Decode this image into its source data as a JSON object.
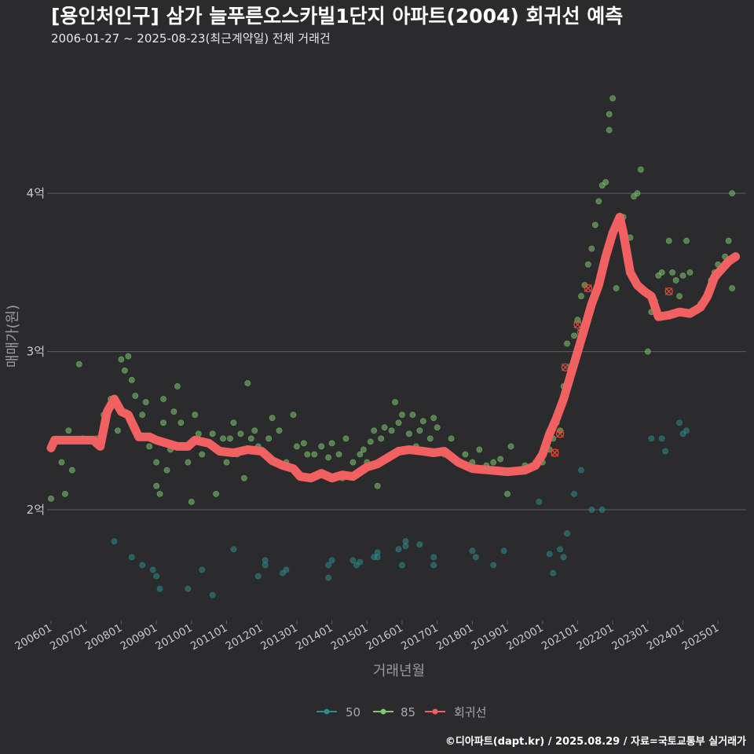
{
  "chart_data": {
    "type": "scatter",
    "title": "[용인처인구] 삼가 늘푸른오스카빌1단지 아파트(2004) 회귀선 예측",
    "subtitle": "2006-01-27 ~ 2025-08-23(최근계약일) 전체 거래건",
    "xlabel": "거래년월",
    "ylabel": "매매가(원)",
    "caption": "©디아파트(dapt.kr) / 2025.08.29 / 자료=국토교통부 실거래가",
    "xlim": [
      2006.0,
      2025.8
    ],
    "ylim": [
      1.3,
      4.8
    ],
    "y_ticks": [
      {
        "v": 2,
        "label": "2억"
      },
      {
        "v": 3,
        "label": "3억"
      },
      {
        "v": 4,
        "label": "4억"
      }
    ],
    "x_ticks": [
      "200601",
      "200701",
      "200801",
      "200901",
      "201001",
      "201101",
      "201201",
      "201301",
      "201401",
      "201501",
      "201601",
      "201701",
      "201801",
      "201901",
      "202001",
      "202101",
      "202201",
      "202301",
      "202401",
      "202501"
    ],
    "legend": [
      {
        "name": "50",
        "color": "#2e8b8b"
      },
      {
        "name": "85",
        "color": "#7ec86e"
      },
      {
        "name": "회귀선",
        "color": "#f26161"
      }
    ],
    "series": [
      {
        "name": "50",
        "color": "#2e8b8b",
        "points": [
          [
            2007.8,
            1.8
          ],
          [
            2008.3,
            1.7
          ],
          [
            2008.6,
            1.65
          ],
          [
            2008.9,
            1.62
          ],
          [
            2009.0,
            1.58
          ],
          [
            2009.1,
            1.5
          ],
          [
            2009.9,
            1.5
          ],
          [
            2010.3,
            1.62
          ],
          [
            2010.6,
            1.46
          ],
          [
            2011.2,
            1.75
          ],
          [
            2011.9,
            1.58
          ],
          [
            2012.1,
            1.65
          ],
          [
            2012.1,
            1.68
          ],
          [
            2012.6,
            1.6
          ],
          [
            2012.7,
            1.62
          ],
          [
            2013.9,
            1.57
          ],
          [
            2013.9,
            1.65
          ],
          [
            2014.0,
            1.68
          ],
          [
            2014.6,
            1.68
          ],
          [
            2014.7,
            1.65
          ],
          [
            2014.8,
            1.67
          ],
          [
            2015.2,
            1.7
          ],
          [
            2015.3,
            1.73
          ],
          [
            2015.3,
            1.7
          ],
          [
            2015.9,
            1.75
          ],
          [
            2016.0,
            1.65
          ],
          [
            2016.1,
            1.8
          ],
          [
            2016.1,
            1.77
          ],
          [
            2016.5,
            1.78
          ],
          [
            2016.9,
            1.65
          ],
          [
            2016.9,
            1.7
          ],
          [
            2018.0,
            1.74
          ],
          [
            2018.1,
            1.7
          ],
          [
            2018.6,
            1.65
          ],
          [
            2018.9,
            1.74
          ],
          [
            2019.9,
            2.05
          ],
          [
            2020.2,
            1.72
          ],
          [
            2020.3,
            1.6
          ],
          [
            2020.5,
            1.75
          ],
          [
            2020.6,
            1.7
          ],
          [
            2020.7,
            1.85
          ],
          [
            2020.9,
            2.1
          ],
          [
            2021.1,
            2.25
          ],
          [
            2021.4,
            2.0
          ],
          [
            2021.7,
            2.0
          ],
          [
            2023.1,
            2.45
          ],
          [
            2023.4,
            2.45
          ],
          [
            2023.5,
            2.37
          ],
          [
            2023.9,
            2.55
          ],
          [
            2024.0,
            2.48
          ],
          [
            2024.1,
            2.5
          ]
        ]
      },
      {
        "name": "85",
        "color": "#7ec86e",
        "points": [
          [
            2006.0,
            2.07
          ],
          [
            2006.3,
            2.3
          ],
          [
            2006.4,
            2.1
          ],
          [
            2006.5,
            2.5
          ],
          [
            2006.6,
            2.25
          ],
          [
            2006.8,
            2.92
          ],
          [
            2006.9,
            2.45
          ],
          [
            2007.3,
            2.45
          ],
          [
            2007.5,
            2.6
          ],
          [
            2007.7,
            2.7
          ],
          [
            2007.9,
            2.5
          ],
          [
            2008.0,
            2.95
          ],
          [
            2008.1,
            2.88
          ],
          [
            2008.2,
            2.97
          ],
          [
            2008.3,
            2.82
          ],
          [
            2008.4,
            2.72
          ],
          [
            2008.6,
            2.6
          ],
          [
            2008.7,
            2.68
          ],
          [
            2008.8,
            2.4
          ],
          [
            2008.9,
            2.45
          ],
          [
            2009.0,
            2.3
          ],
          [
            2009.0,
            2.15
          ],
          [
            2009.1,
            2.1
          ],
          [
            2009.2,
            2.55
          ],
          [
            2009.2,
            2.7
          ],
          [
            2009.3,
            2.25
          ],
          [
            2009.4,
            2.38
          ],
          [
            2009.5,
            2.62
          ],
          [
            2009.6,
            2.78
          ],
          [
            2009.7,
            2.55
          ],
          [
            2009.8,
            2.4
          ],
          [
            2009.9,
            2.3
          ],
          [
            2010.0,
            2.05
          ],
          [
            2010.1,
            2.6
          ],
          [
            2010.2,
            2.48
          ],
          [
            2010.3,
            2.35
          ],
          [
            2010.6,
            2.48
          ],
          [
            2010.7,
            2.1
          ],
          [
            2010.8,
            2.38
          ],
          [
            2010.9,
            2.45
          ],
          [
            2011.0,
            2.3
          ],
          [
            2011.1,
            2.45
          ],
          [
            2011.2,
            2.55
          ],
          [
            2011.3,
            2.35
          ],
          [
            2011.4,
            2.48
          ],
          [
            2011.5,
            2.2
          ],
          [
            2011.6,
            2.8
          ],
          [
            2011.7,
            2.45
          ],
          [
            2011.8,
            2.5
          ],
          [
            2011.9,
            2.4
          ],
          [
            2012.1,
            2.35
          ],
          [
            2012.2,
            2.45
          ],
          [
            2012.3,
            2.58
          ],
          [
            2012.5,
            2.5
          ],
          [
            2012.7,
            2.3
          ],
          [
            2012.9,
            2.6
          ],
          [
            2013.0,
            2.4
          ],
          [
            2013.2,
            2.42
          ],
          [
            2013.3,
            2.35
          ],
          [
            2013.5,
            2.35
          ],
          [
            2013.7,
            2.4
          ],
          [
            2013.9,
            2.33
          ],
          [
            2014.0,
            2.42
          ],
          [
            2014.2,
            2.35
          ],
          [
            2014.3,
            2.2
          ],
          [
            2014.4,
            2.45
          ],
          [
            2014.6,
            2.3
          ],
          [
            2014.8,
            2.35
          ],
          [
            2014.9,
            2.38
          ],
          [
            2015.0,
            2.3
          ],
          [
            2015.1,
            2.43
          ],
          [
            2015.2,
            2.5
          ],
          [
            2015.3,
            2.15
          ],
          [
            2015.4,
            2.45
          ],
          [
            2015.5,
            2.52
          ],
          [
            2015.7,
            2.5
          ],
          [
            2015.8,
            2.68
          ],
          [
            2015.9,
            2.55
          ],
          [
            2016.0,
            2.6
          ],
          [
            2016.2,
            2.48
          ],
          [
            2016.3,
            2.6
          ],
          [
            2016.4,
            2.4
          ],
          [
            2016.5,
            2.5
          ],
          [
            2016.6,
            2.56
          ],
          [
            2016.8,
            2.45
          ],
          [
            2016.9,
            2.58
          ],
          [
            2017.0,
            2.52
          ],
          [
            2017.2,
            2.35
          ],
          [
            2017.4,
            2.45
          ],
          [
            2017.6,
            2.3
          ],
          [
            2017.8,
            2.35
          ],
          [
            2018.0,
            2.3
          ],
          [
            2018.2,
            2.38
          ],
          [
            2018.4,
            2.28
          ],
          [
            2018.6,
            2.3
          ],
          [
            2018.8,
            2.32
          ],
          [
            2019.0,
            2.1
          ],
          [
            2019.1,
            2.4
          ],
          [
            2019.3,
            2.25
          ],
          [
            2019.5,
            2.28
          ],
          [
            2019.8,
            2.3
          ],
          [
            2020.0,
            2.3
          ],
          [
            2020.1,
            2.42
          ],
          [
            2020.2,
            2.38
          ],
          [
            2020.3,
            2.45
          ],
          [
            2020.4,
            2.55
          ],
          [
            2020.5,
            2.5
          ],
          [
            2020.6,
            2.78
          ],
          [
            2020.7,
            3.05
          ],
          [
            2020.8,
            2.9
          ],
          [
            2020.9,
            3.1
          ],
          [
            2021.0,
            3.2
          ],
          [
            2021.1,
            3.35
          ],
          [
            2021.2,
            3.42
          ],
          [
            2021.3,
            3.55
          ],
          [
            2021.4,
            3.65
          ],
          [
            2021.5,
            3.8
          ],
          [
            2021.6,
            3.95
          ],
          [
            2021.7,
            4.05
          ],
          [
            2021.8,
            4.07
          ],
          [
            2021.9,
            4.4
          ],
          [
            2021.9,
            4.5
          ],
          [
            2022.0,
            4.6
          ],
          [
            2022.1,
            3.4
          ],
          [
            2022.3,
            3.85
          ],
          [
            2022.5,
            3.72
          ],
          [
            2022.6,
            3.98
          ],
          [
            2022.7,
            4.0
          ],
          [
            2022.8,
            4.15
          ],
          [
            2023.0,
            3.0
          ],
          [
            2023.1,
            3.25
          ],
          [
            2023.2,
            3.32
          ],
          [
            2023.3,
            3.48
          ],
          [
            2023.4,
            3.5
          ],
          [
            2023.6,
            3.7
          ],
          [
            2023.7,
            3.5
          ],
          [
            2023.8,
            3.45
          ],
          [
            2023.9,
            3.35
          ],
          [
            2024.0,
            3.48
          ],
          [
            2024.1,
            3.7
          ],
          [
            2024.2,
            3.5
          ],
          [
            2024.3,
            3.25
          ],
          [
            2024.5,
            3.3
          ],
          [
            2024.8,
            3.45
          ],
          [
            2024.9,
            3.5
          ],
          [
            2025.0,
            3.55
          ],
          [
            2025.2,
            3.6
          ],
          [
            2025.3,
            3.7
          ],
          [
            2025.4,
            3.4
          ],
          [
            2025.4,
            4.0
          ]
        ]
      }
    ],
    "highlighted_points": [
      [
        2020.35,
        2.36
      ],
      [
        2020.5,
        2.48
      ],
      [
        2020.65,
        2.9
      ],
      [
        2021.0,
        3.17
      ],
      [
        2021.1,
        3.12
      ],
      [
        2021.3,
        3.4
      ],
      [
        2023.6,
        3.38
      ]
    ],
    "regression": {
      "name": "회귀선",
      "color": "#f26161",
      "x": [
        2006.0,
        2006.1,
        2006.5,
        2007.0,
        2007.2,
        2007.4,
        2007.6,
        2007.8,
        2008.0,
        2008.2,
        2008.5,
        2008.8,
        2009.0,
        2009.3,
        2009.6,
        2009.9,
        2010.1,
        2010.5,
        2010.8,
        2011.2,
        2011.6,
        2012.0,
        2012.3,
        2012.6,
        2012.9,
        2013.1,
        2013.4,
        2013.7,
        2014.0,
        2014.3,
        2014.6,
        2015.0,
        2015.3,
        2015.6,
        2015.9,
        2016.2,
        2016.6,
        2016.9,
        2017.2,
        2017.6,
        2018.0,
        2018.5,
        2019.0,
        2019.5,
        2019.8,
        2020.0,
        2020.2,
        2020.4,
        2020.6,
        2020.8,
        2021.0,
        2021.2,
        2021.4,
        2021.6,
        2021.8,
        2022.0,
        2022.2,
        2022.3,
        2022.5,
        2022.7,
        2022.9,
        2023.1,
        2023.3,
        2023.6,
        2023.9,
        2024.2,
        2024.5,
        2024.7,
        2024.9,
        2025.1,
        2025.3,
        2025.5
      ],
      "y": [
        2.39,
        2.44,
        2.44,
        2.44,
        2.44,
        2.4,
        2.62,
        2.7,
        2.62,
        2.6,
        2.46,
        2.46,
        2.44,
        2.42,
        2.4,
        2.4,
        2.44,
        2.42,
        2.37,
        2.36,
        2.38,
        2.37,
        2.31,
        2.28,
        2.26,
        2.21,
        2.2,
        2.23,
        2.2,
        2.22,
        2.21,
        2.27,
        2.29,
        2.33,
        2.37,
        2.38,
        2.37,
        2.36,
        2.37,
        2.3,
        2.26,
        2.25,
        2.24,
        2.25,
        2.28,
        2.35,
        2.48,
        2.58,
        2.7,
        2.85,
        3.0,
        3.15,
        3.3,
        3.42,
        3.6,
        3.75,
        3.85,
        3.75,
        3.5,
        3.42,
        3.38,
        3.35,
        3.22,
        3.23,
        3.25,
        3.24,
        3.28,
        3.35,
        3.47,
        3.52,
        3.57,
        3.6
      ]
    }
  }
}
